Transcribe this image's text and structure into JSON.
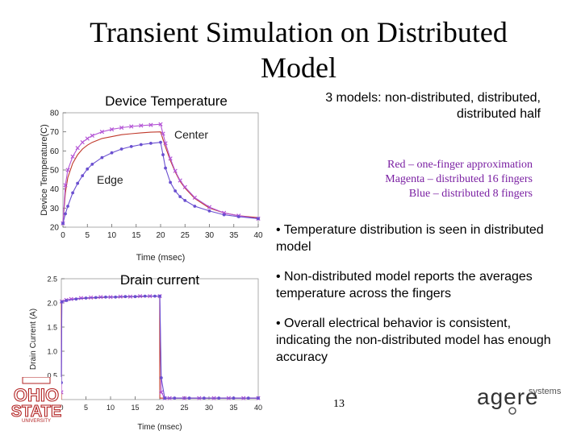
{
  "slide": {
    "title": "Transient Simulation on Distributed Model",
    "models_note": "3 models: non-distributed, distributed, distributed half",
    "legend": [
      "Red – one-finger approximation",
      "Magenta – distributed 16 fingers",
      "Blue – distributed 8 fingers"
    ],
    "bullets": [
      "• Temperature distribution is seen in distributed model",
      "• Non-distributed model reports the averages temperature across the fingers",
      "• Overall electrical behavior is consistent, indicating the non-distributed model has enough accuracy"
    ],
    "page_number": "13",
    "logos": {
      "left": "OHIO STATE UNIVERSITY",
      "right_main": "agere",
      "right_sub": "systems"
    }
  },
  "colors": {
    "red": "#c0392b",
    "magenta": "#b455d6",
    "blue": "#6a4fd0",
    "osu_red": "#b22222"
  },
  "chart_data": [
    {
      "type": "line",
      "title": "Device Temperature",
      "xlabel": "Time (msec)",
      "ylabel": "Device Temperature(C)",
      "xlim": [
        0,
        40
      ],
      "ylim": [
        20,
        80
      ],
      "xticks": [
        0,
        5,
        10,
        15,
        20,
        25,
        30,
        35,
        40
      ],
      "yticks": [
        20,
        30,
        40,
        50,
        60,
        70,
        80
      ],
      "annotations": [
        "Center",
        "Edge"
      ],
      "grid": false,
      "series": [
        {
          "color": "red",
          "marker": "none",
          "x": [
            0,
            0.5,
            1,
            2,
            3,
            4,
            5,
            6,
            8,
            10,
            12,
            14,
            16,
            18,
            20,
            20.5,
            21,
            22,
            23,
            24,
            25,
            27,
            30,
            33,
            36,
            40
          ],
          "y": [
            22,
            38,
            46,
            53.5,
            58,
            61,
            63,
            64.5,
            66.5,
            67.5,
            68.5,
            69,
            69.5,
            69.8,
            70,
            66,
            62,
            55,
            49,
            44,
            40.5,
            35,
            30,
            27.5,
            26,
            25
          ]
        },
        {
          "color": "magenta",
          "marker": "x",
          "x": [
            0,
            0.5,
            1,
            2,
            3,
            4,
            5,
            6,
            8,
            10,
            12,
            14,
            16,
            18,
            20,
            20.5,
            21,
            22,
            23,
            24,
            25,
            27,
            30,
            33,
            36,
            40
          ],
          "y": [
            22,
            42,
            50,
            57,
            61.5,
            64.5,
            66.5,
            68,
            70,
            71.3,
            72.2,
            72.8,
            73.3,
            73.6,
            74,
            69,
            64,
            56,
            49.5,
            44.5,
            41,
            35.5,
            30.5,
            27.5,
            26,
            24.5
          ]
        },
        {
          "color": "blue",
          "marker": "o",
          "x": [
            0,
            0.5,
            1,
            2,
            3,
            4,
            5,
            6,
            8,
            10,
            12,
            14,
            16,
            18,
            20,
            20.5,
            21,
            22,
            23,
            24,
            25,
            27,
            30,
            33,
            36,
            40
          ],
          "y": [
            22,
            27,
            31,
            38,
            43,
            47,
            50.5,
            53,
            56.5,
            59,
            61,
            62.3,
            63.3,
            64,
            64.5,
            58,
            51,
            43.5,
            39,
            36,
            34,
            31,
            28.5,
            26.5,
            25.5,
            24.5
          ]
        }
      ]
    },
    {
      "type": "line",
      "title": "Drain current",
      "xlabel": "Time (msec)",
      "ylabel": "Drain Current (A)",
      "xlim": [
        0,
        40
      ],
      "ylim": [
        0,
        2.5
      ],
      "xticks": [
        0,
        5,
        10,
        15,
        20,
        25,
        30,
        35,
        40
      ],
      "yticks": [
        0.5,
        1.0,
        1.5,
        2.0,
        2.5
      ],
      "ytick_labels": [
        "0.5",
        "1.0",
        "1.5",
        "2.0",
        "2.5"
      ],
      "grid": false,
      "series": [
        {
          "color": "red",
          "marker": "none",
          "x": [
            0,
            0.01,
            1,
            2,
            4,
            6,
            8,
            10,
            12,
            14,
            16,
            18,
            19.99,
            20,
            20.01,
            22,
            25,
            30,
            35,
            40
          ],
          "y": [
            0,
            2.03,
            2.05,
            2.07,
            2.09,
            2.1,
            2.11,
            2.12,
            2.12,
            2.13,
            2.13,
            2.14,
            2.14,
            0.3,
            0.03,
            0.03,
            0.03,
            0.03,
            0.03,
            0.03
          ]
        },
        {
          "color": "magenta",
          "marker": "x",
          "x": [
            0,
            0.1,
            1,
            2,
            4,
            6,
            8,
            10,
            12,
            14,
            16,
            18,
            20,
            20.3,
            21,
            22,
            25,
            28,
            31,
            34,
            37,
            40
          ],
          "y": [
            0.15,
            2.03,
            2.06,
            2.08,
            2.1,
            2.11,
            2.12,
            2.12,
            2.13,
            2.13,
            2.14,
            2.14,
            2.14,
            0.15,
            0.03,
            0.03,
            0.03,
            0.03,
            0.03,
            0.03,
            0.03,
            0.03
          ]
        },
        {
          "color": "blue",
          "marker": "o",
          "x": [
            0,
            0.1,
            1,
            3,
            5,
            7,
            9,
            11,
            13,
            15,
            17,
            19,
            20,
            20.3,
            21,
            23,
            26,
            29,
            32,
            35,
            38,
            40
          ],
          "y": [
            0.35,
            2.02,
            2.05,
            2.08,
            2.1,
            2.11,
            2.12,
            2.12,
            2.13,
            2.13,
            2.14,
            2.14,
            2.14,
            0.45,
            0.03,
            0.03,
            0.03,
            0.03,
            0.03,
            0.03,
            0.03,
            0.03
          ]
        }
      ]
    }
  ]
}
